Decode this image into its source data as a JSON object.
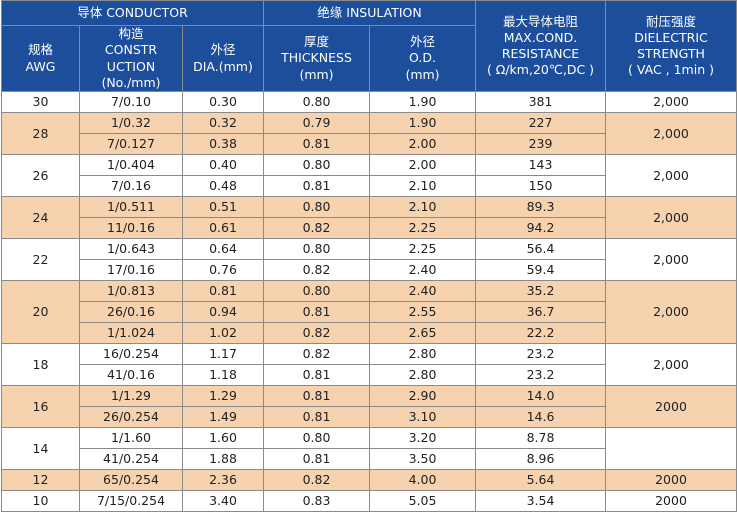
{
  "header": {
    "conductor": "导体 CONDUCTOR",
    "insulation": "绝缘 INSULATION",
    "resistance": [
      "最大导体电阻",
      "MAX.COND.",
      "RESISTANCE",
      "( Ω/km,20℃,DC )"
    ],
    "dielectric": [
      "耐压强度",
      "DIELECTRIC",
      "STRENGTH",
      "( VAC , 1min )"
    ],
    "awg": [
      "规格",
      "AWG"
    ],
    "construction": [
      "构造",
      "CONSTR",
      "UCTION",
      "(No./mm)"
    ],
    "dia": [
      "外径",
      "DIA.(mm)"
    ],
    "thickness": [
      "厚度",
      "THICKNESS",
      "(mm)"
    ],
    "od": [
      "外径",
      "O.D.",
      "(mm)"
    ]
  },
  "groups": [
    {
      "awg": "30",
      "voltage": "2,000",
      "rows": [
        {
          "construction": "7/0.10",
          "dia": "0.30",
          "thickness": "0.80",
          "od": "1.90",
          "resistance": "381"
        }
      ]
    },
    {
      "awg": "28",
      "voltage": "2,000",
      "rows": [
        {
          "construction": "1/0.32",
          "dia": "0.32",
          "thickness": "0.79",
          "od": "1.90",
          "resistance": "227"
        },
        {
          "construction": "7/0.127",
          "dia": "0.38",
          "thickness": "0.81",
          "od": "2.00",
          "resistance": "239"
        }
      ]
    },
    {
      "awg": "26",
      "voltage": "2,000",
      "rows": [
        {
          "construction": "1/0.404",
          "dia": "0.40",
          "thickness": "0.80",
          "od": "2.00",
          "resistance": "143"
        },
        {
          "construction": "7/0.16",
          "dia": "0.48",
          "thickness": "0.81",
          "od": "2.10",
          "resistance": "150"
        }
      ]
    },
    {
      "awg": "24",
      "voltage": "2,000",
      "rows": [
        {
          "construction": "1/0.511",
          "dia": "0.51",
          "thickness": "0.80",
          "od": "2.10",
          "resistance": "89.3"
        },
        {
          "construction": "11/0.16",
          "dia": "0.61",
          "thickness": "0.82",
          "od": "2.25",
          "resistance": "94.2"
        }
      ]
    },
    {
      "awg": "22",
      "voltage": "2,000",
      "rows": [
        {
          "construction": "1/0.643",
          "dia": "0.64",
          "thickness": "0.80",
          "od": "2.25",
          "resistance": "56.4"
        },
        {
          "construction": "17/0.16",
          "dia": "0.76",
          "thickness": "0.82",
          "od": "2.40",
          "resistance": "59.4"
        }
      ]
    },
    {
      "awg": "20",
      "voltage": "2,000",
      "rows": [
        {
          "construction": "1/0.813",
          "dia": "0.81",
          "thickness": "0.80",
          "od": "2.40",
          "resistance": "35.2"
        },
        {
          "construction": "26/0.16",
          "dia": "0.94",
          "thickness": "0.81",
          "od": "2.55",
          "resistance": "36.7"
        },
        {
          "construction": "1/1.024",
          "dia": "1.02",
          "thickness": "0.82",
          "od": "2.65",
          "resistance": "22.2"
        }
      ]
    },
    {
      "awg": "18",
      "voltage": "2,000",
      "rows": [
        {
          "construction": "16/0.254",
          "dia": "1.17",
          "thickness": "0.82",
          "od": "2.80",
          "resistance": "23.2"
        },
        {
          "construction": "41/0.16",
          "dia": "1.18",
          "thickness": "0.81",
          "od": "2.80",
          "resistance": "23.2"
        }
      ]
    },
    {
      "awg": "16",
      "voltage": "2000",
      "rows": [
        {
          "construction": "1/1.29",
          "dia": "1.29",
          "thickness": "0.81",
          "od": "2.90",
          "resistance": "14.0"
        },
        {
          "construction": "26/0.254",
          "dia": "1.49",
          "thickness": "0.81",
          "od": "3.10",
          "resistance": "14.6"
        }
      ]
    },
    {
      "awg": "14",
      "voltage": "",
      "rows": [
        {
          "construction": "1/1.60",
          "dia": "1.60",
          "thickness": "0.80",
          "od": "3.20",
          "resistance": "8.78"
        },
        {
          "construction": "41/0.254",
          "dia": "1.88",
          "thickness": "0.81",
          "od": "3.50",
          "resistance": "8.96"
        }
      ]
    },
    {
      "awg": "12",
      "voltage": "2000",
      "rows": [
        {
          "construction": "65/0.254",
          "dia": "2.36",
          "thickness": "0.82",
          "od": "4.00",
          "resistance": "5.64"
        }
      ]
    },
    {
      "awg": "10",
      "voltage": "2000",
      "rows": [
        {
          "construction": "7/15/0.254",
          "dia": "3.40",
          "thickness": "0.83",
          "od": "5.05",
          "resistance": "3.54"
        }
      ]
    }
  ]
}
